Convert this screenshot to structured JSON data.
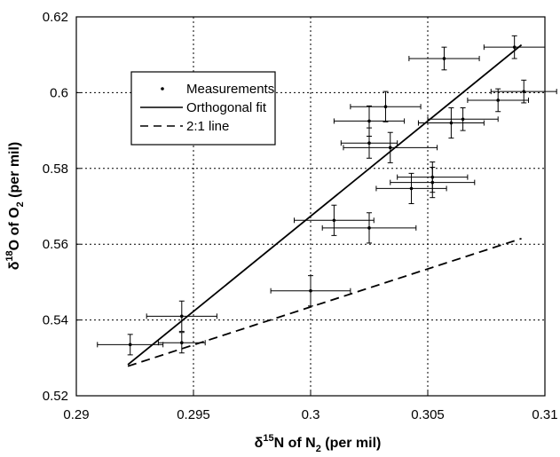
{
  "chart_data": {
    "type": "scatter",
    "xlabel": {
      "prefix": "δ",
      "sup": "15",
      "mid": "N of N",
      "sub": "2",
      "suffix": " (per mil)"
    },
    "ylabel": {
      "prefix": "δ",
      "sup": "18",
      "mid": "O of O",
      "sub": "2",
      "suffix": " (per mil)"
    },
    "xlim": [
      0.29,
      0.31
    ],
    "ylim": [
      0.52,
      0.62
    ],
    "xticks": [
      0.29,
      0.295,
      0.3,
      0.305,
      0.31
    ],
    "xtick_labels": [
      "0.29",
      "0.295",
      "0.3",
      "0.305",
      "0.31"
    ],
    "yticks": [
      0.52,
      0.54,
      0.56,
      0.58,
      0.6,
      0.62
    ],
    "ytick_labels": [
      "0.52",
      "0.54",
      "0.56",
      "0.58",
      "0.6",
      "0.62"
    ],
    "grid": true,
    "legend_position": "upper-left",
    "series": [
      {
        "name": "Measurements",
        "style": "points-with-errorbars",
        "points": [
          {
            "x": 0.2923,
            "y": 0.5335,
            "xerr": 0.0014,
            "yerr": 0.0027
          },
          {
            "x": 0.2945,
            "y": 0.534,
            "xerr": 0.001,
            "yerr": 0.0027
          },
          {
            "x": 0.2945,
            "y": 0.541,
            "xerr": 0.0015,
            "yerr": 0.004
          },
          {
            "x": 0.3,
            "y": 0.5477,
            "xerr": 0.0017,
            "yerr": 0.004
          },
          {
            "x": 0.301,
            "y": 0.5663,
            "xerr": 0.0017,
            "yerr": 0.004
          },
          {
            "x": 0.3025,
            "y": 0.5643,
            "xerr": 0.002,
            "yerr": 0.004
          },
          {
            "x": 0.3025,
            "y": 0.5925,
            "xerr": 0.0015,
            "yerr": 0.004
          },
          {
            "x": 0.3025,
            "y": 0.5867,
            "xerr": 0.0012,
            "yerr": 0.004
          },
          {
            "x": 0.3032,
            "y": 0.5963,
            "xerr": 0.0015,
            "yerr": 0.004
          },
          {
            "x": 0.3034,
            "y": 0.5855,
            "xerr": 0.002,
            "yerr": 0.004
          },
          {
            "x": 0.3043,
            "y": 0.5747,
            "xerr": 0.0015,
            "yerr": 0.004
          },
          {
            "x": 0.3052,
            "y": 0.5763,
            "xerr": 0.0018,
            "yerr": 0.004
          },
          {
            "x": 0.3052,
            "y": 0.5777,
            "xerr": 0.0015,
            "yerr": 0.004
          },
          {
            "x": 0.3057,
            "y": 0.609,
            "xerr": 0.0015,
            "yerr": 0.003
          },
          {
            "x": 0.306,
            "y": 0.592,
            "xerr": 0.0014,
            "yerr": 0.004
          },
          {
            "x": 0.3065,
            "y": 0.593,
            "xerr": 0.0015,
            "yerr": 0.003
          },
          {
            "x": 0.308,
            "y": 0.598,
            "xerr": 0.0013,
            "yerr": 0.003
          },
          {
            "x": 0.3087,
            "y": 0.612,
            "xerr": 0.0013,
            "yerr": 0.003
          },
          {
            "x": 0.3091,
            "y": 0.6003,
            "xerr": 0.0014,
            "yerr": 0.003
          }
        ]
      },
      {
        "name": "Orthogonal fit",
        "style": "solid",
        "points": [
          {
            "x": 0.2922,
            "y": 0.5282
          },
          {
            "x": 0.309,
            "y": 0.6126
          }
        ]
      },
      {
        "name": "2:1 line",
        "style": "dashed",
        "points": [
          {
            "x": 0.2922,
            "y": 0.5278
          },
          {
            "x": 0.309,
            "y": 0.5615
          }
        ]
      }
    ]
  }
}
